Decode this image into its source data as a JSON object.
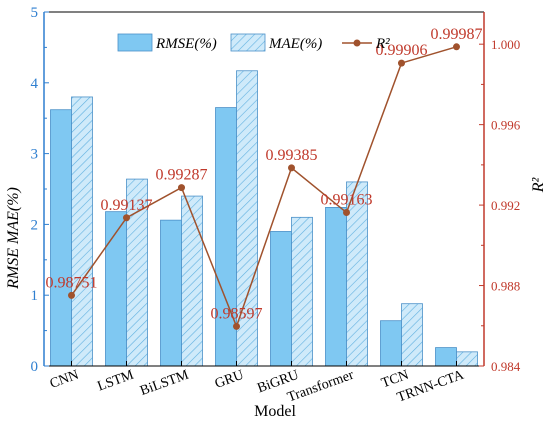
{
  "chart_data": {
    "type": "bar",
    "categories": [
      "CNN",
      "LSTM",
      "BiLSTM",
      "GRU",
      "BiGRU",
      "Transformer",
      "TCN",
      "TRNN-CTA"
    ],
    "series": [
      {
        "name": "RMSE(%)",
        "values": [
          3.62,
          2.18,
          2.06,
          3.65,
          1.9,
          2.24,
          0.64,
          0.26
        ],
        "axis": "left",
        "style": "solid",
        "color": "#7fc8f2"
      },
      {
        "name": "MAE(%)",
        "values": [
          3.8,
          2.64,
          2.4,
          4.17,
          2.1,
          2.6,
          0.88,
          0.2
        ],
        "axis": "left",
        "style": "hatched",
        "color": "#aeddf7"
      },
      {
        "name": "R²",
        "values": [
          0.98751,
          0.99137,
          0.99287,
          0.98597,
          0.99385,
          0.99163,
          0.99906,
          0.99987
        ],
        "axis": "right",
        "style": "line",
        "color": "#a0522d",
        "labels": [
          "0.98751",
          "0.99137",
          "0.99287",
          "0.98597",
          "0.99385",
          "0.99163",
          "0.99906",
          "0.99987"
        ]
      }
    ],
    "xlabel": "Model",
    "ylabel": "RMSE MAE(%)",
    "ylabel_right": "R²",
    "ylim": [
      0,
      5
    ],
    "ylim_right": [
      0.984,
      1.0016
    ],
    "yticks": [
      "0",
      "1",
      "2",
      "3",
      "4",
      "5"
    ],
    "yticks_right": [
      "0.984",
      "0.988",
      "0.992",
      "0.996",
      "1.000"
    ],
    "legend_position": "top-right",
    "left_axis_color": "#2f7fd0",
    "right_axis_color": "#c0392b"
  }
}
